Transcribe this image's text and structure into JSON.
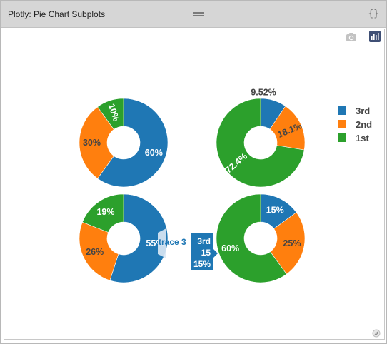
{
  "window": {
    "title": "Plotly: Pie Chart Subplots",
    "braces_glyph": "{}"
  },
  "modebar": {
    "camera_icon": "camera-icon",
    "plotly_logo_icon": "plotly-logo-icon"
  },
  "colors": {
    "3rd": "#1f77b4",
    "2nd": "#ff7f0e",
    "1st": "#2ca02c"
  },
  "chart_data": [
    {
      "type": "pie",
      "hole": true,
      "labels": [
        "3rd",
        "2nd",
        "1st"
      ],
      "percent_labels": [
        "60%",
        "30%",
        "10%"
      ],
      "values": [
        60,
        30,
        10
      ]
    },
    {
      "type": "pie",
      "hole": true,
      "labels": [
        "3rd",
        "2nd",
        "1st"
      ],
      "percent_labels": [
        "9.52%",
        "18.1%",
        "72.4%"
      ],
      "values": [
        9.52,
        18.1,
        72.4
      ]
    },
    {
      "type": "pie",
      "hole": true,
      "name": "trace 3",
      "labels": [
        "3rd",
        "2nd",
        "1st"
      ],
      "percent_labels": [
        "55%",
        "26%",
        "19%"
      ],
      "values": [
        55,
        26,
        19
      ],
      "hover": {
        "trace": "trace 3",
        "label": "3rd",
        "value": "15",
        "percent": "15%"
      }
    },
    {
      "type": "pie",
      "hole": true,
      "labels": [
        "3rd",
        "2nd",
        "1st"
      ],
      "percent_labels": [
        "15%",
        "25%",
        "60%"
      ],
      "values": [
        15,
        25,
        60
      ]
    }
  ],
  "legend": {
    "placement": "top-right",
    "items": [
      "3rd",
      "2nd",
      "1st"
    ]
  }
}
